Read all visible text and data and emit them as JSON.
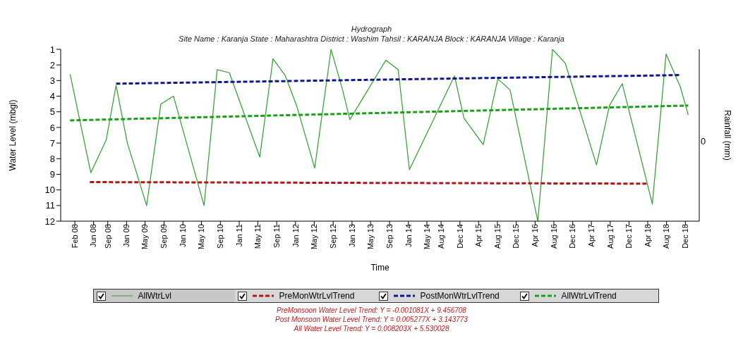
{
  "chart_data": {
    "type": "line",
    "title": "Hydrograph",
    "subtitle": "Site Name : Karanja  State : Maharashtra District : Washim  Tahsil : KARANJA  Block : KARANJA Village : Karanja",
    "xlabel": "Time",
    "ylabel": "Water Level (mbgl)",
    "y2label": "Rainfall (mm)",
    "xlim": [
      "2007-11-15",
      "2019-03-15"
    ],
    "xticks": [
      {
        "value": "2008-02-15",
        "label": "Feb 08"
      },
      {
        "value": "2008-06-15",
        "label": "Jun 08"
      },
      {
        "value": "2008-09-15",
        "label": "Sep 08"
      },
      {
        "value": "2009-01-15",
        "label": "Jan 09"
      },
      {
        "value": "2009-05-15",
        "label": "May 09"
      },
      {
        "value": "2009-09-15",
        "label": "Sep 09"
      },
      {
        "value": "2010-01-15",
        "label": "Jan 10"
      },
      {
        "value": "2010-05-15",
        "label": "May 10"
      },
      {
        "value": "2010-09-15",
        "label": "Sep 10"
      },
      {
        "value": "2011-01-15",
        "label": "Jan 11"
      },
      {
        "value": "2011-05-15",
        "label": "May 11"
      },
      {
        "value": "2011-09-15",
        "label": "Sep 11"
      },
      {
        "value": "2012-01-15",
        "label": "Jan 12"
      },
      {
        "value": "2012-05-15",
        "label": "May 12"
      },
      {
        "value": "2012-09-15",
        "label": "Sep 12"
      },
      {
        "value": "2013-01-15",
        "label": "Jan 13"
      },
      {
        "value": "2013-05-15",
        "label": "May 13"
      },
      {
        "value": "2013-09-15",
        "label": "Sep 13"
      },
      {
        "value": "2014-01-15",
        "label": "Jan 14"
      },
      {
        "value": "2014-05-15",
        "label": "May 14"
      },
      {
        "value": "2014-08-15",
        "label": "Aug 14"
      },
      {
        "value": "2014-12-15",
        "label": "Dec 14"
      },
      {
        "value": "2015-04-15",
        "label": "Apr 15"
      },
      {
        "value": "2015-08-15",
        "label": "Aug 15"
      },
      {
        "value": "2015-12-15",
        "label": "Dec 15"
      },
      {
        "value": "2016-04-15",
        "label": "Apr 16"
      },
      {
        "value": "2016-08-15",
        "label": "Aug 16"
      },
      {
        "value": "2016-12-15",
        "label": "Dec 16"
      },
      {
        "value": "2017-04-15",
        "label": "Apr 17"
      },
      {
        "value": "2017-08-15",
        "label": "Aug 17"
      },
      {
        "value": "2017-12-15",
        "label": "Dec 17"
      },
      {
        "value": "2018-04-15",
        "label": "Apr 18"
      },
      {
        "value": "2018-08-15",
        "label": "Aug 18"
      },
      {
        "value": "2018-12-15",
        "label": "Dec 18"
      }
    ],
    "ylim": [
      12,
      1
    ],
    "yticks": [
      1,
      2,
      3,
      4,
      5,
      6,
      7,
      8,
      9,
      10,
      11,
      12
    ],
    "grid": false,
    "legend": "bottom",
    "marker": "none",
    "series": [
      {
        "name": "AllWtrLvl",
        "color": "#2e9e2e",
        "line_style": "solid",
        "x": [
          "2008-01-15",
          "2008-05-28",
          "2008-09-05",
          "2008-11-08",
          "2009-01-20",
          "2009-05-25",
          "2009-08-25",
          "2009-11-15",
          "2010-06-01",
          "2010-08-25",
          "2010-11-12",
          "2011-05-28",
          "2011-08-22",
          "2011-11-10",
          "2012-01-25",
          "2012-05-18",
          "2012-09-01",
          "2012-11-12",
          "2013-01-01",
          "2013-08-22",
          "2013-11-10",
          "2014-01-22",
          "2014-11-10",
          "2015-01-10",
          "2015-05-15",
          "2015-08-18",
          "2015-11-05",
          "2016-05-03",
          "2016-08-06",
          "2016-10-28",
          "2017-05-18",
          "2017-08-10",
          "2017-11-01",
          "2018-05-15",
          "2018-08-12",
          "2018-11-12",
          "2019-01-03"
        ],
        "values": [
          2.6,
          8.9,
          6.8,
          3.3,
          7.0,
          11.0,
          4.5,
          4.0,
          11.0,
          2.3,
          2.5,
          7.9,
          1.6,
          2.7,
          4.7,
          8.6,
          1.0,
          3.5,
          5.5,
          1.7,
          2.3,
          8.7,
          2.7,
          5.4,
          7.1,
          2.9,
          3.6,
          12.0,
          1.0,
          1.9,
          8.4,
          4.6,
          3.2,
          10.9,
          1.3,
          3.4,
          5.2
        ]
      },
      {
        "name": "PreMonWtrLvlTrend",
        "color": "#b01818",
        "line_style": "dashed",
        "x": [
          "2008-05-22",
          "2018-04-22"
        ],
        "values": [
          9.5,
          9.6
        ]
      },
      {
        "name": "PostMonWtrLvlTrend",
        "color": "#101890",
        "line_style": "dashed",
        "x": [
          "2008-11-08",
          "2018-11-05"
        ],
        "values": [
          3.2,
          2.65
        ]
      },
      {
        "name": "AllWtrLvlTrend",
        "color": "#18a018",
        "line_style": "dashed",
        "x": [
          "2008-01-15",
          "2019-01-03"
        ],
        "values": [
          5.55,
          4.6
        ]
      }
    ],
    "annotations": [
      "0",
      "PreMonsoon Water Level Trend: Y = -0.001081X + 9.456708",
      "Post Monsoon Water Level Trend: Y = 0.005277X + 3.143773",
      "All Water Level Trend: Y = 0.008203X + 5.530028"
    ]
  }
}
